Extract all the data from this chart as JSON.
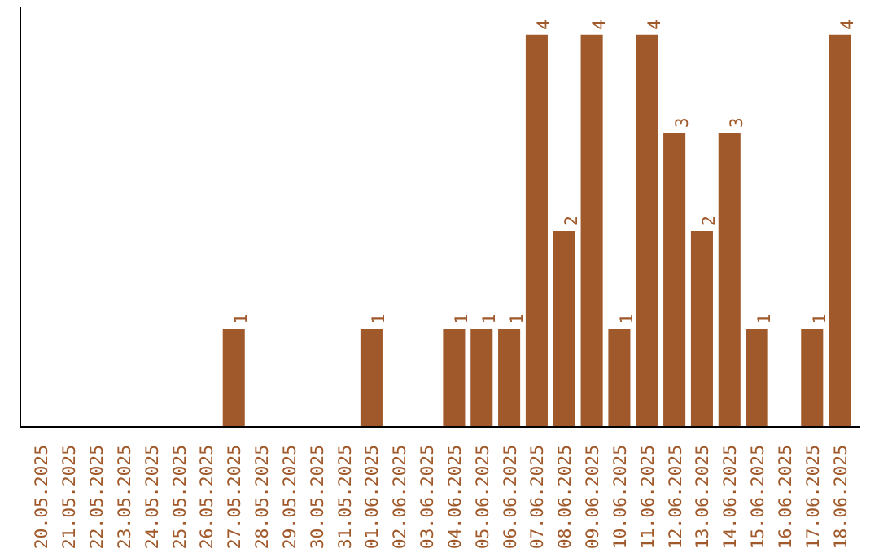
{
  "chart_data": {
    "type": "bar",
    "categories": [
      "20.05.2025",
      "21.05.2025",
      "22.05.2025",
      "23.05.2025",
      "24.05.2025",
      "25.05.2025",
      "26.05.2025",
      "27.05.2025",
      "28.05.2025",
      "29.05.2025",
      "30.05.2025",
      "31.05.2025",
      "01.06.2025",
      "02.06.2025",
      "03.06.2025",
      "04.06.2025",
      "05.06.2025",
      "06.06.2025",
      "07.06.2025",
      "08.06.2025",
      "09.06.2025",
      "10.06.2025",
      "11.06.2025",
      "12.06.2025",
      "13.06.2025",
      "14.06.2025",
      "15.06.2025",
      "16.06.2025",
      "17.06.2025",
      "18.06.2025"
    ],
    "values": [
      0,
      0,
      0,
      0,
      0,
      0,
      0,
      1,
      0,
      0,
      0,
      0,
      1,
      0,
      0,
      1,
      1,
      1,
      4,
      2,
      4,
      1,
      4,
      3,
      2,
      3,
      1,
      0,
      1,
      4
    ],
    "value_labels": [
      null,
      null,
      null,
      null,
      null,
      null,
      null,
      "1",
      null,
      null,
      null,
      null,
      "1",
      null,
      null,
      "1",
      "1",
      "1",
      "4",
      "2",
      "4",
      "1",
      "4",
      "3",
      "2",
      "3",
      "1",
      null,
      "1",
      "4"
    ],
    "color": "#a0592a",
    "grid": false,
    "tick_labels": "x"
  }
}
